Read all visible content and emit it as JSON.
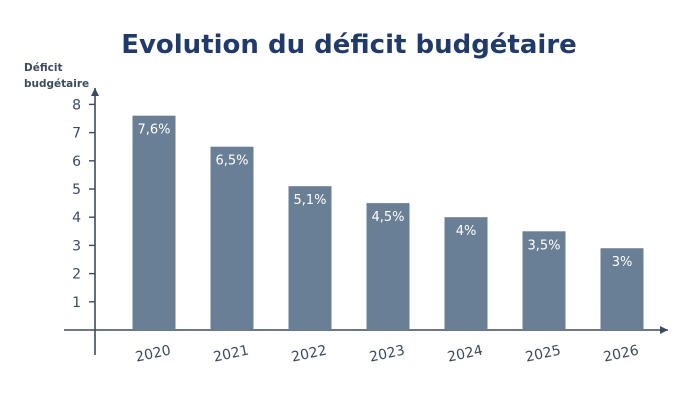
{
  "chart_data": {
    "type": "bar",
    "title": "Evolution du déficit budgétaire",
    "ylabel": [
      "Déficit",
      "budgétaire"
    ],
    "xlabel": "",
    "categories": [
      "2020",
      "2021",
      "2022",
      "2023",
      "2024",
      "2025",
      "2026"
    ],
    "values": [
      7.6,
      6.5,
      5.1,
      4.5,
      4.0,
      3.5,
      2.9
    ],
    "data_labels": [
      "7,6%",
      "6,5%",
      "5,1%",
      "4,5%",
      "4%",
      "3,5%",
      "3%"
    ],
    "yticks": [
      1,
      2,
      3,
      4,
      5,
      6,
      7,
      8
    ],
    "ylim": [
      0,
      8
    ],
    "grid": false,
    "legend": "none",
    "colors": {
      "bar": "#697f96",
      "axis": "#3b4b60",
      "title": "#1f3a6e",
      "label": "#ffffff"
    }
  }
}
